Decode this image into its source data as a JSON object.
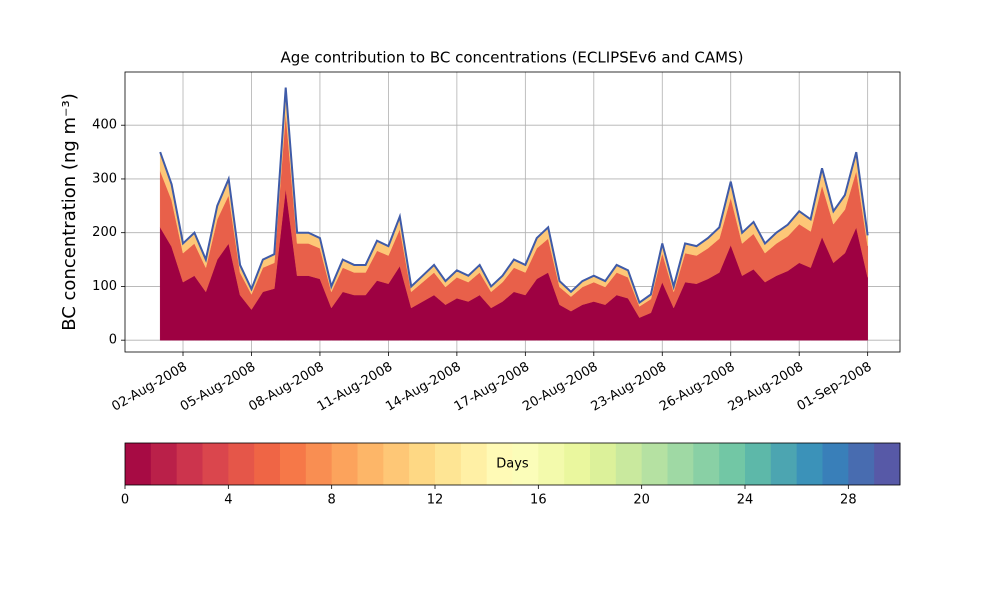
{
  "chart_data": {
    "type": "stacked_area",
    "title": "Age contribution to BC concentrations (ECLIPSEv6 and CAMS)",
    "y_label": "BC concentration (ng m⁻³)",
    "x_start": "2008-08-01T00:00",
    "x_step_hours": 12,
    "series": [
      {
        "color": "#9e0142",
        "values": [
          210,
          174,
          108,
          120,
          90,
          150,
          180,
          84,
          57,
          90,
          96,
          282,
          120,
          120,
          114,
          60,
          90,
          84,
          84,
          111,
          105,
          138,
          60,
          72,
          84,
          66,
          78,
          72,
          84,
          60,
          72,
          90,
          84,
          114,
          126,
          66,
          54,
          66,
          72,
          66,
          84,
          78,
          42,
          51,
          108,
          60,
          108,
          105,
          114,
          126,
          177,
          120,
          132,
          108,
          120,
          129,
          144,
          135,
          192,
          144,
          162,
          210,
          117
        ]
      },
      {
        "color": "#e8604a",
        "values": [
          105,
          87,
          54,
          60,
          45,
          75,
          90,
          42,
          28.5,
          45,
          48,
          141,
          60,
          60,
          57,
          30,
          45,
          42,
          42,
          55.5,
          52.5,
          69,
          30,
          36,
          42,
          33,
          39,
          36,
          42,
          30,
          36,
          45,
          42,
          57,
          63,
          33,
          27,
          33,
          36,
          33,
          42,
          39,
          21,
          25.5,
          54,
          30,
          54,
          52.5,
          57,
          63,
          88.5,
          60,
          66,
          54,
          60,
          64.5,
          72,
          67.5,
          96,
          72,
          81,
          105,
          58.5
        ]
      },
      {
        "color": "#fdc777",
        "values": [
          35,
          29,
          18,
          20,
          15,
          25,
          30,
          14,
          9.5,
          15,
          16,
          47,
          20,
          20,
          19,
          10,
          15,
          14,
          14,
          18.5,
          17.5,
          23,
          10,
          12,
          14,
          11,
          13,
          12,
          14,
          10,
          12,
          15,
          14,
          19,
          21,
          11,
          9,
          11,
          12,
          11,
          14,
          13,
          7,
          8.5,
          18,
          10,
          18,
          17.5,
          19,
          21,
          29.5,
          20,
          22,
          18,
          20,
          21.5,
          24,
          22.5,
          32,
          24,
          27,
          35,
          19.5
        ]
      }
    ],
    "line_color": "#3f5ba8",
    "xlim": [
      "2008-07-30T11:00",
      "2008-09-02T10:00"
    ],
    "xticks": [
      {
        "value": "2008-08-02T00:00",
        "label": "02-Aug-2008"
      },
      {
        "value": "2008-08-05T00:00",
        "label": "05-Aug-2008"
      },
      {
        "value": "2008-08-08T00:00",
        "label": "08-Aug-2008"
      },
      {
        "value": "2008-08-11T00:00",
        "label": "11-Aug-2008"
      },
      {
        "value": "2008-08-14T00:00",
        "label": "14-Aug-2008"
      },
      {
        "value": "2008-08-17T00:00",
        "label": "17-Aug-2008"
      },
      {
        "value": "2008-08-20T00:00",
        "label": "20-Aug-2008"
      },
      {
        "value": "2008-08-23T00:00",
        "label": "23-Aug-2008"
      },
      {
        "value": "2008-08-26T00:00",
        "label": "26-Aug-2008"
      },
      {
        "value": "2008-08-29T00:00",
        "label": "29-Aug-2008"
      },
      {
        "value": "2008-09-01T00:00",
        "label": "01-Sep-2008"
      }
    ],
    "ylim": [
      -22,
      499
    ],
    "yticks": [
      0,
      100,
      200,
      300,
      400
    ],
    "grid": true,
    "colorbar": {
      "label": "Days",
      "clim": [
        0,
        30
      ],
      "cticks": [
        0,
        4,
        8,
        12,
        16,
        20,
        24,
        28
      ],
      "colormap": [
        "#9e0142",
        "#d53e4f",
        "#f46d43",
        "#fdae61",
        "#fee08b",
        "#ffffbf",
        "#e6f598",
        "#abdda4",
        "#66c2a5",
        "#3288bd",
        "#5e4fa2"
      ]
    }
  }
}
